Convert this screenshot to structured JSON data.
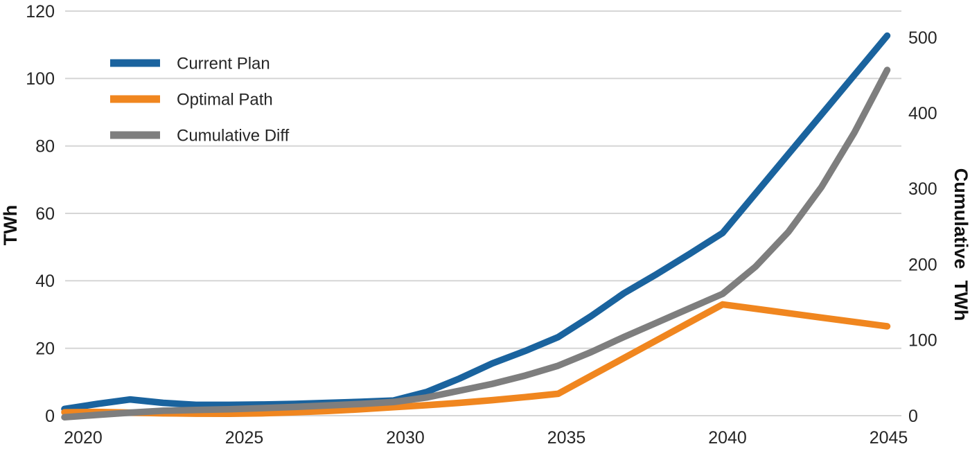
{
  "chart_data": {
    "type": "line",
    "x": [
      2020,
      2021,
      2022,
      2023,
      2024,
      2025,
      2026,
      2027,
      2028,
      2029,
      2030,
      2031,
      2032,
      2033,
      2034,
      2035,
      2036,
      2037,
      2038,
      2039,
      2040,
      2041,
      2042,
      2043,
      2044,
      2045
    ],
    "series": [
      {
        "name": "Current Plan",
        "axis": "left",
        "color": "#1a639e",
        "values": [
          2.0,
          3.5,
          4.8,
          3.8,
          3.2,
          3.2,
          3.3,
          3.5,
          3.8,
          4.1,
          4.5,
          7.0,
          11.0,
          15.5,
          19.2,
          23.3,
          29.5,
          36.3,
          42.0,
          48.0,
          54.2,
          65.9,
          77.6,
          89.3,
          101.0,
          112.7
        ]
      },
      {
        "name": "Optimal Path",
        "axis": "left",
        "color": "#f0861f",
        "values": [
          1.0,
          1.1,
          0.9,
          0.7,
          0.6,
          0.55,
          0.7,
          1.0,
          1.4,
          1.9,
          2.5,
          3.1,
          3.8,
          4.6,
          5.5,
          6.5,
          11.8,
          17.1,
          22.4,
          27.7,
          33.0,
          31.7,
          30.4,
          29.1,
          27.8,
          26.5
        ]
      },
      {
        "name": "Cumulative Diff",
        "axis": "right",
        "color": "#7e7e7e",
        "values": [
          -2,
          1,
          4,
          6.5,
          7.5,
          8.5,
          10,
          11.5,
          13.5,
          15.5,
          18,
          24,
          33,
          42,
          53,
          66,
          84,
          104,
          123,
          142,
          161,
          197,
          243,
          302,
          374,
          457
        ]
      }
    ],
    "left_axis": {
      "title": "TWh",
      "ticks": [
        0,
        20,
        40,
        60,
        80,
        100,
        120
      ],
      "range": [
        0,
        120
      ]
    },
    "right_axis": {
      "title": "Cumulative TWh",
      "ticks": [
        0,
        100,
        200,
        300,
        400,
        500
      ],
      "range": [
        0,
        540
      ]
    },
    "x_axis": {
      "ticks": [
        2020,
        2025,
        2030,
        2035,
        2040,
        2045
      ]
    },
    "legend": [
      "Current Plan",
      "Optimal Path",
      "Cumulative Diff"
    ],
    "grid": "horizontal",
    "grid_color": "#d6d6d6",
    "background_color": "#ffffff"
  }
}
